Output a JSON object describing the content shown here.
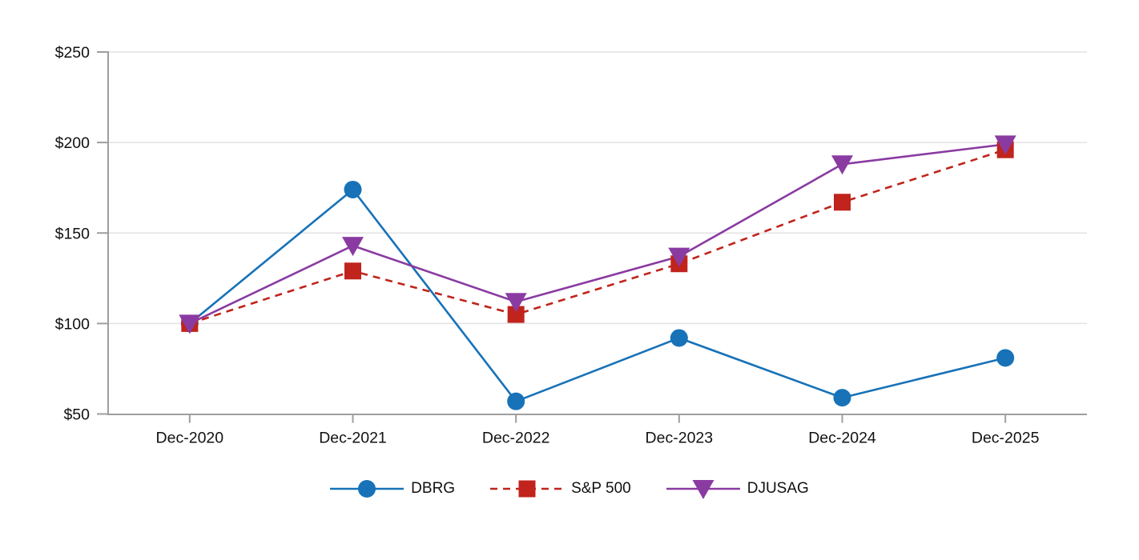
{
  "chart_data": {
    "type": "line",
    "title": "",
    "categories": [
      "Dec-2020",
      "Dec-2021",
      "Dec-2022",
      "Dec-2023",
      "Dec-2024",
      "Dec-2025"
    ],
    "series": [
      {
        "name": "DBRG",
        "color": "#1772b8",
        "marker": "circle",
        "line_style": "solid",
        "values": [
          100,
          174,
          57,
          92,
          59,
          81
        ]
      },
      {
        "name": "S&P 500",
        "color": "#c0241c",
        "marker": "square",
        "line_style": "dashed",
        "values": [
          100,
          129,
          105,
          133,
          167,
          196
        ]
      },
      {
        "name": "DJUSAG",
        "color": "#8a3ba1",
        "marker": "triangle-down",
        "line_style": "solid",
        "values": [
          100,
          143,
          112,
          137,
          188,
          199
        ]
      }
    ],
    "y_axis": {
      "tick_labels": [
        "$50",
        "$100",
        "$150",
        "$200",
        "$250"
      ],
      "tick_values": [
        50,
        100,
        150,
        200,
        250
      ],
      "min": 50,
      "max": 250,
      "currency_prefix": "$"
    },
    "x_axis": {
      "tick_labels": [
        "Dec-2020",
        "Dec-2021",
        "Dec-2022",
        "Dec-2023",
        "Dec-2024",
        "Dec-2025"
      ]
    },
    "grid": true,
    "legend_position": "bottom-center",
    "colors": {
      "background": "#ffffff",
      "axis": "#9e9e9e",
      "gridline": "#e3e3e3",
      "text": "#111111"
    }
  }
}
